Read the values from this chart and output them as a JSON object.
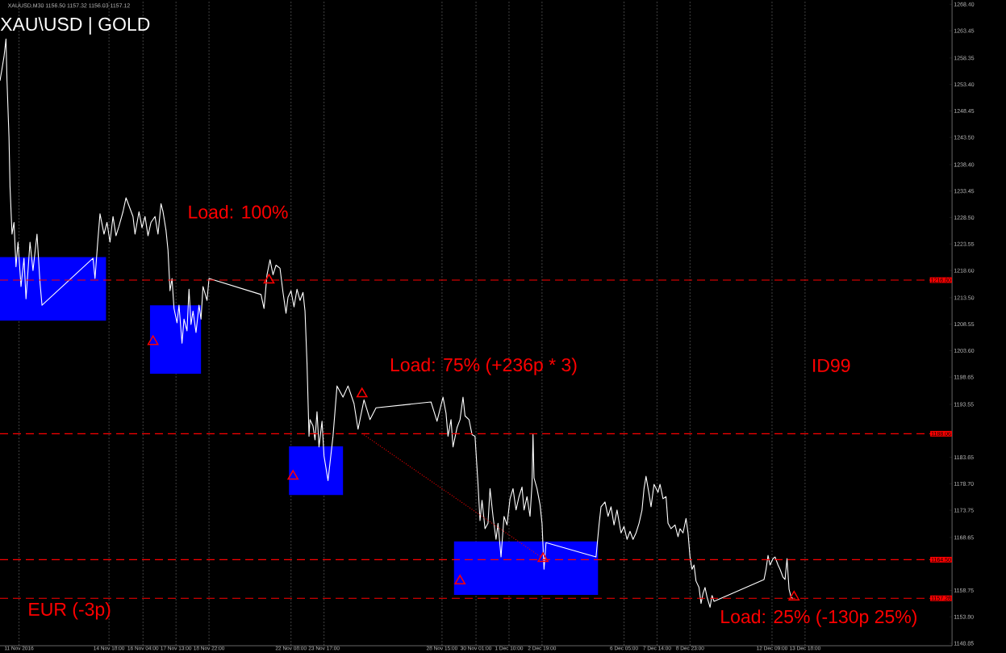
{
  "chart_data": {
    "type": "line",
    "title": "XAU\\USD | GOLD",
    "subtitle": "XAUUSD,M30  1156.50 1157.32 1156.03 1157.12",
    "annotations": [
      "Load: 100%",
      "Load: 75% (+236p * 3)",
      "ID99",
      "EUR (-3p)",
      "Load: 25% (-130p 25%)"
    ],
    "xlim": [
      "2016-11-10T05:00",
      "2016-12-19T21:00"
    ],
    "xticks": [
      {
        "value": "2016-11-11",
        "label": "11 Nov 2016"
      },
      {
        "value": "2016-11-14T18:00",
        "label": "14 Nov 18:00"
      },
      {
        "value": "2016-11-16T04:00",
        "label": "16 Nov 04:00"
      },
      {
        "value": "2016-11-17T13:00",
        "label": "17 Nov 13:00"
      },
      {
        "value": "2016-11-18T22:00",
        "label": "18 Nov 22:00"
      },
      {
        "value": "2016-11-22T08:00",
        "label": "22 Nov 08:00"
      },
      {
        "value": "2016-11-23T17:00",
        "label": "23 Nov 17:00"
      },
      {
        "value": "2016-11-28T15:00",
        "label": "28 Nov 15:00"
      },
      {
        "value": "2016-11-30T01:00",
        "label": "30 Nov 01:00"
      },
      {
        "value": "2016-12-01T10:00",
        "label": "1 Dec 10:00"
      },
      {
        "value": "2016-12-02T19:00",
        "label": "2 Dec 19:00"
      },
      {
        "value": "2016-12-06T05:00",
        "label": "6 Dec 05:00"
      },
      {
        "value": "2016-12-07T14:00",
        "label": "7 Dec 14:00"
      },
      {
        "value": "2016-12-08T23:00",
        "label": "8 Dec 23:00"
      },
      {
        "value": "2016-12-12T09:00",
        "label": "12 Dec 09:00"
      },
      {
        "value": "2016-12-13T18:00",
        "label": "13 Dec 18:00"
      }
    ],
    "ylim": [
      1148.4,
      1269.2
    ],
    "yticks": [
      {
        "value": 1268.4,
        "label": "1268.40"
      },
      {
        "value": 1263.45,
        "label": "1263.45"
      },
      {
        "value": 1258.35,
        "label": "1258.35"
      },
      {
        "value": 1253.4,
        "label": "1253.40"
      },
      {
        "value": 1248.45,
        "label": "1248.45"
      },
      {
        "value": 1243.5,
        "label": "1243.50"
      },
      {
        "value": 1238.4,
        "label": "1238.40"
      },
      {
        "value": 1233.45,
        "label": "1233.45"
      },
      {
        "value": 1228.5,
        "label": "1228.50"
      },
      {
        "value": 1223.55,
        "label": "1223.55"
      },
      {
        "value": 1218.6,
        "label": "1218.60"
      },
      {
        "value": 1213.5,
        "label": "1213.50"
      },
      {
        "value": 1208.55,
        "label": "1208.55"
      },
      {
        "value": 1203.6,
        "label": "1203.60"
      },
      {
        "value": 1198.65,
        "label": "1198.65"
      },
      {
        "value": 1193.55,
        "label": "1193.55"
      },
      {
        "value": 1183.65,
        "label": "1183.65"
      },
      {
        "value": 1178.7,
        "label": "1178.70"
      },
      {
        "value": 1173.75,
        "label": "1173.75"
      },
      {
        "value": 1168.65,
        "label": "1168.65"
      },
      {
        "value": 1158.75,
        "label": "1158.75"
      },
      {
        "value": 1153.8,
        "label": "1153.80"
      },
      {
        "value": 1148.85,
        "label": "1148.85"
      }
    ],
    "grid": "x",
    "ref_lines": [
      {
        "axis": "y",
        "value": 1216.8,
        "label": "1216.80",
        "color": "#ff0000",
        "line_style": "dashed"
      },
      {
        "axis": "y",
        "value": 1188.06,
        "label": "1188.06",
        "color": "#ff0000",
        "line_style": "dashed"
      },
      {
        "axis": "y",
        "value": 1164.5,
        "label": "1164.50",
        "color": "#ff0000",
        "line_style": "dashed"
      },
      {
        "axis": "y",
        "value": 1157.28,
        "label": "1157.28",
        "color": "#ff0000",
        "line_style": "dashed"
      }
    ],
    "series": [
      {
        "type": "area",
        "color": "#0000ff",
        "x": [
          "2016-11-10T05:00",
          "2016-11-14T15:00"
        ],
        "values": [
          null,
          null
        ],
        "lower": [
          1209.2,
          1209.2
        ],
        "upper": [
          1221.1,
          1221.1
        ]
      },
      {
        "type": "area",
        "color": "#0000ff",
        "x": [
          "2016-11-16T11:00",
          "2016-11-18T14:00"
        ],
        "values": [
          null,
          null
        ],
        "lower": [
          1199.3,
          1199.3
        ],
        "upper": [
          1212.1,
          1212.1
        ]
      },
      {
        "type": "area",
        "color": "#0000ff",
        "x": [
          "2016-11-22T06:00",
          "2016-11-24T12:00"
        ],
        "values": [
          null,
          null
        ],
        "lower": [
          1176.6,
          1176.6
        ],
        "upper": [
          1185.7,
          1185.7
        ]
      },
      {
        "type": "area",
        "color": "#0000ff",
        "x": [
          "2016-11-29T03:00",
          "2016-12-05T03:00"
        ],
        "values": [
          null,
          null
        ],
        "lower": [
          1157.9,
          1157.9
        ],
        "upper": [
          1167.9,
          1167.9
        ]
      },
      {
        "color": "#ffffff",
        "line_style": "solid",
        "x": [
          "2016-11-10T05:00",
          "2016-11-10T07:00",
          "2016-11-10T09:00",
          "2016-11-10T11:00",
          "2016-11-10T12:00",
          "2016-11-10T14:00",
          "2016-11-10T15:00",
          "2016-11-10T17:00",
          "2016-11-10T19:00",
          "2016-11-10T21:00",
          "2016-11-10T23:00",
          "2016-11-11T02:00",
          "2016-11-11T05:00",
          "2016-11-11T07:00",
          "2016-11-11T11:00",
          "2016-11-11T14:00",
          "2016-11-11T18:00",
          "2016-11-11T21:00",
          "2016-11-11T23:00",
          "2016-11-14T02:00",
          "2016-11-14T04:00",
          "2016-11-14T07:00",
          "2016-11-14T09:00",
          "2016-11-14T13:00",
          "2016-11-14T16:00",
          "2016-11-14T19:00",
          "2016-11-14T22:00",
          "2016-11-15T01:00",
          "2016-11-15T04:00",
          "2016-11-15T08:00",
          "2016-11-15T11:00",
          "2016-11-15T14:00",
          "2016-11-15T18:00",
          "2016-11-15T20:00",
          "2016-11-16T00:00",
          "2016-11-16T03:00",
          "2016-11-16T06:00",
          "2016-11-16T09:00",
          "2016-11-16T12:00",
          "2016-11-16T16:00",
          "2016-11-16T19:00",
          "2016-11-16T22:00",
          "2016-11-17T00:00",
          "2016-11-17T03:00",
          "2016-11-17T05:00",
          "2016-11-17T07:00",
          "2016-11-17T09:00",
          "2016-11-17T11:00",
          "2016-11-17T14:00",
          "2016-11-17T16:00",
          "2016-11-17T19:00",
          "2016-11-17T21:00",
          "2016-11-18T00:00",
          "2016-11-18T02:00",
          "2016-11-18T04:00",
          "2016-11-18T06:00",
          "2016-11-18T09:00",
          "2016-11-18T12:00",
          "2016-11-18T14:00",
          "2016-11-18T16:00",
          "2016-11-18T20:00",
          "2016-11-18T22:00",
          "2016-11-21T02:00",
          "2016-11-21T05:00",
          "2016-11-21T08:00",
          "2016-11-21T11:00",
          "2016-11-21T14:00",
          "2016-11-21T17:00",
          "2016-11-21T21:00",
          "2016-11-22T00:00",
          "2016-11-22T03:00",
          "2016-11-22T05:00",
          "2016-11-22T08:00",
          "2016-11-22T11:00",
          "2016-11-22T14:00",
          "2016-11-22T17:00",
          "2016-11-22T20:00",
          "2016-11-22T22:00",
          "2016-11-23T00:00",
          "2016-11-23T02:00",
          "2016-11-23T03:00",
          "2016-11-23T06:00",
          "2016-11-23T08:00",
          "2016-11-23T10:00",
          "2016-11-23T12:00",
          "2016-11-23T15:00",
          "2016-11-23T17:00",
          "2016-11-23T21:00",
          "2016-11-24T02:00",
          "2016-11-24T06:00",
          "2016-11-24T12:00",
          "2016-11-24T17:00",
          "2016-11-24T23:00",
          "2016-11-25T03:00",
          "2016-11-25T09:00",
          "2016-11-25T15:00",
          "2016-11-25T21:00",
          "2016-11-28T04:00",
          "2016-11-28T10:00",
          "2016-11-28T16:00",
          "2016-11-28T19:00",
          "2016-11-28T21:00",
          "2016-11-29T00:00",
          "2016-11-29T02:00",
          "2016-11-29T06:00",
          "2016-11-29T09:00",
          "2016-11-29T12:00",
          "2016-11-29T14:00",
          "2016-11-29T18:00",
          "2016-11-29T21:00",
          "2016-11-30T00:00",
          "2016-11-30T03:00",
          "2016-11-30T05:00",
          "2016-11-30T07:00",
          "2016-11-30T10:00",
          "2016-11-30T13:00",
          "2016-11-30T15:00",
          "2016-11-30T18:00",
          "2016-11-30T21:00",
          "2016-11-30T23:00",
          "2016-12-01T02:00",
          "2016-12-01T05:00",
          "2016-12-01T08:00",
          "2016-12-01T11:00",
          "2016-12-01T14:00",
          "2016-12-01T17:00",
          "2016-12-01T20:00",
          "2016-12-01T23:00",
          "2016-12-02T01:00",
          "2016-12-02T04:00",
          "2016-12-02T07:00",
          "2016-12-02T09:00",
          "2016-12-02T10:00",
          "2016-12-02T11:00",
          "2016-12-02T14:00",
          "2016-12-02T17:00",
          "2016-12-02T19:00",
          "2016-12-02T21:00",
          "2016-12-02T23:00",
          "2016-12-05T01:00",
          "2016-12-05T04:00",
          "2016-12-05T06:00",
          "2016-12-05T10:00",
          "2016-12-05T13:00",
          "2016-12-05T16:00",
          "2016-12-05T19:00",
          "2016-12-05T22:00",
          "2016-12-06T02:00",
          "2016-12-06T05:00",
          "2016-12-06T08:00",
          "2016-12-06T11:00",
          "2016-12-06T14:00",
          "2016-12-06T17:00",
          "2016-12-06T20:00",
          "2016-12-06T23:00",
          "2016-12-07T01:00",
          "2016-12-07T03:00",
          "2016-12-07T06:00",
          "2016-12-07T08:00",
          "2016-12-07T11:00",
          "2016-12-07T15:00",
          "2016-12-07T17:00",
          "2016-12-07T20:00",
          "2016-12-07T23:00",
          "2016-12-08T01:00",
          "2016-12-08T04:00",
          "2016-12-08T08:00",
          "2016-12-08T11:00",
          "2016-12-08T13:00",
          "2016-12-08T16:00",
          "2016-12-08T19:00",
          "2016-12-08T21:00",
          "2016-12-08T23:00",
          "2016-12-09T01:00",
          "2016-12-09T03:00",
          "2016-12-09T05:00",
          "2016-12-09T08:00",
          "2016-12-09T10:00",
          "2016-12-09T12:00",
          "2016-12-09T14:00",
          "2016-12-09T16:00",
          "2016-12-09T19:00",
          "2016-12-09T21:00",
          "2016-12-09T23:00",
          "2016-12-12T01:00",
          "2016-12-12T03:00",
          "2016-12-12T05:00",
          "2016-12-12T07:00",
          "2016-12-12T10:00",
          "2016-12-12T12:00",
          "2016-12-12T15:00",
          "2016-12-12T17:00",
          "2016-12-12T20:00",
          "2016-12-12T22:00",
          "2016-12-13T00:00",
          "2016-12-13T02:00",
          "2016-12-13T04:00",
          "2016-12-13T06:00"
        ],
        "values": [
          1254.1,
          1256.3,
          1258.6,
          1261.9,
          1254.1,
          1243.5,
          1234.4,
          1225.4,
          1227.6,
          1219.3,
          1223.9,
          1215.6,
          1220.9,
          1213.3,
          1223.9,
          1218.6,
          1225.4,
          1216.3,
          1212.1,
          1220.9,
          1217.1,
          1224.6,
          1229.2,
          1225.4,
          1227.6,
          1223.9,
          1228.7,
          1225.1,
          1226.9,
          1229.6,
          1232.2,
          1230.7,
          1228.7,
          1225.4,
          1229.6,
          1226.6,
          1228.7,
          1225.1,
          1227.6,
          1228.7,
          1225.4,
          1231.1,
          1229.6,
          1226.1,
          1222.4,
          1214.8,
          1217.1,
          1211.5,
          1208.8,
          1212.1,
          1205.0,
          1209.5,
          1207.3,
          1215.1,
          1208.5,
          1211.0,
          1207.0,
          1212.1,
          1209.5,
          1215.6,
          1213.0,
          1217.1,
          1214.1,
          1211.5,
          1217.8,
          1220.6,
          1217.8,
          1219.6,
          1219.0,
          1214.5,
          1210.6,
          1213.6,
          1214.8,
          1211.8,
          1215.1,
          1213.0,
          1214.5,
          1211.0,
          1201.2,
          1187.6,
          1190.7,
          1189.5,
          1186.9,
          1192.2,
          1185.6,
          1190.4,
          1183.9,
          1179.3,
          1187.6,
          1197.0,
          1194.9,
          1197.0,
          1193.7,
          1188.9,
          1194.4,
          1190.7,
          1192.9,
          1194.0,
          1190.4,
          1194.9,
          1191.9,
          1187.6,
          1190.7,
          1185.6,
          1189.2,
          1190.7,
          1194.9,
          1191.4,
          1190.7,
          1187.9,
          1187.6,
          1178.6,
          1171.8,
          1175.6,
          1170.3,
          1171.3,
          1177.8,
          1172.6,
          1168.3,
          1171.3,
          1165.0,
          1172.6,
          1171.0,
          1175.9,
          1177.8,
          1173.8,
          1176.3,
          1178.1,
          1173.8,
          1176.3,
          1172.6,
          1178.6,
          1187.9,
          1179.8,
          1177.8,
          1174.8,
          1171.3,
          1162.7,
          1167.7,
          1165.0,
          1171.0,
          1174.4,
          1175.3,
          1172.6,
          1174.4,
          1171.0,
          1173.8,
          1169.5,
          1170.7,
          1168.3,
          1169.8,
          1168.3,
          1169.5,
          1171.3,
          1173.8,
          1177.8,
          1180.1,
          1176.8,
          1174.4,
          1178.6,
          1177.1,
          1178.6,
          1175.9,
          1176.3,
          1171.3,
          1170.3,
          1171.0,
          1168.8,
          1170.3,
          1169.5,
          1172.2,
          1169.5,
          1165.0,
          1162.7,
          1163.5,
          1160.5,
          1159.3,
          1156.3,
          1158.2,
          1159.3,
          1157.5,
          1155.6,
          1157.8,
          1156.7,
          1160.8,
          1162.7,
          1165.3,
          1163.5,
          1164.7,
          1165.0,
          1163.5,
          1162.7,
          1161.2,
          1160.8,
          1164.7,
          1159.0,
          1157.5,
          1157.2
        ]
      },
      {
        "type": "line",
        "color": "#ff0000",
        "line_style": "dotted",
        "x": [
          "2016-11-25T07:00",
          "2016-12-02T18:00"
        ],
        "values": [
          1188.1,
          1165.0
        ]
      },
      {
        "type": "scatter",
        "color": "#ff0000",
        "marker": "triangle",
        "x": [
          "2016-11-16T14:00",
          "2016-11-21T10:00",
          "2016-11-22T10:00",
          "2016-11-25T07:00",
          "2016-11-29T09:00",
          "2016-12-02T20:00",
          "2016-12-13T07:00"
        ],
        "values": [
          1205.3,
          1216.8,
          1180.1,
          1195.5,
          1160.5,
          1164.7,
          1157.5
        ]
      }
    ]
  }
}
